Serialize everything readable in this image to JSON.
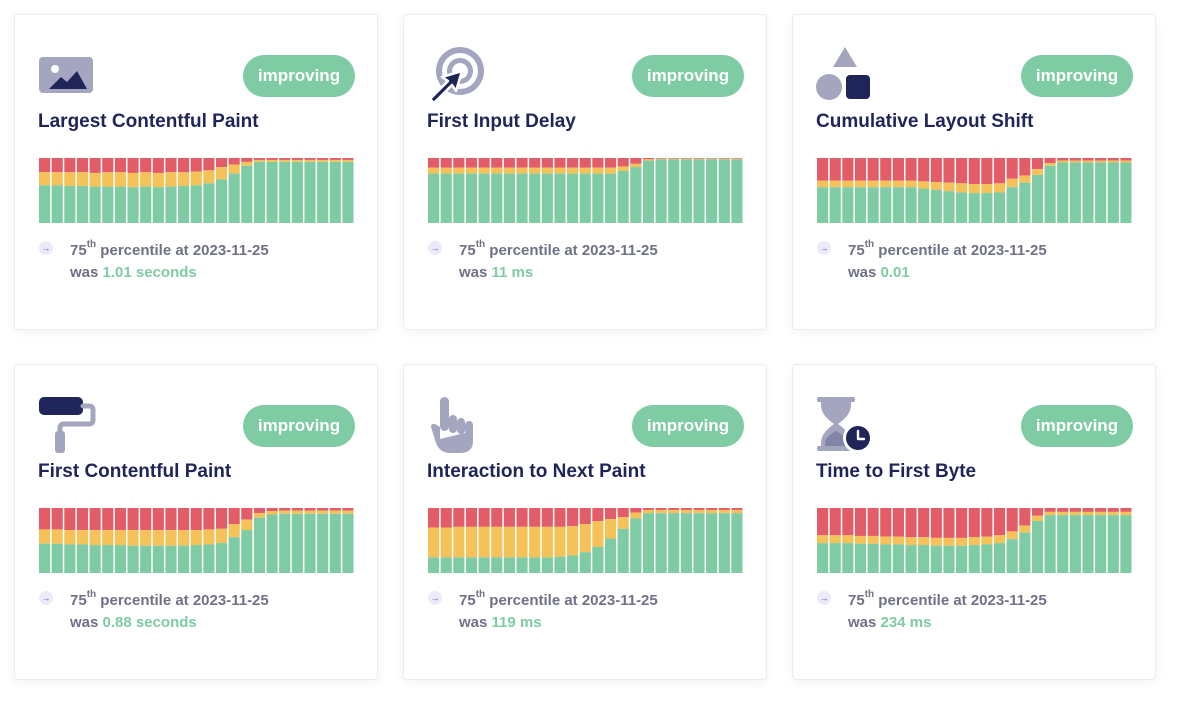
{
  "colors": {
    "good": "#7ecba4",
    "needs_improvement": "#f5c25a",
    "poor": "#e35d68",
    "navy": "#1f2459",
    "icon_gray": "#a4a6c0"
  },
  "cards": [
    {
      "icon": "image-icon",
      "badge": "improving",
      "title": "Largest Contentful Paint",
      "percentile_number": "75",
      "percentile_suffix": "th",
      "percentile_text": " percentile at 2023-11-25",
      "was_label": "was ",
      "value": "1.01 seconds",
      "bars": [
        {
          "good": 0.58,
          "ni": 0.2
        },
        {
          "good": 0.58,
          "ni": 0.2
        },
        {
          "good": 0.57,
          "ni": 0.21
        },
        {
          "good": 0.57,
          "ni": 0.21
        },
        {
          "good": 0.56,
          "ni": 0.21
        },
        {
          "good": 0.56,
          "ni": 0.22
        },
        {
          "good": 0.56,
          "ni": 0.22
        },
        {
          "good": 0.55,
          "ni": 0.22
        },
        {
          "good": 0.56,
          "ni": 0.22
        },
        {
          "good": 0.55,
          "ni": 0.22
        },
        {
          "good": 0.56,
          "ni": 0.22
        },
        {
          "good": 0.57,
          "ni": 0.21
        },
        {
          "good": 0.58,
          "ni": 0.21
        },
        {
          "good": 0.61,
          "ni": 0.2
        },
        {
          "good": 0.67,
          "ni": 0.19
        },
        {
          "good": 0.76,
          "ni": 0.14
        },
        {
          "good": 0.88,
          "ni": 0.06
        },
        {
          "good": 0.94,
          "ni": 0.03
        },
        {
          "good": 0.94,
          "ni": 0.03
        },
        {
          "good": 0.94,
          "ni": 0.03
        },
        {
          "good": 0.94,
          "ni": 0.03
        },
        {
          "good": 0.94,
          "ni": 0.03
        },
        {
          "good": 0.94,
          "ni": 0.03
        },
        {
          "good": 0.94,
          "ni": 0.03
        },
        {
          "good": 0.94,
          "ni": 0.03
        }
      ]
    },
    {
      "icon": "cursor-target-icon",
      "badge": "improving",
      "title": "First Input Delay",
      "percentile_number": "75",
      "percentile_suffix": "th",
      "percentile_text": " percentile at 2023-11-25",
      "was_label": "was ",
      "value": "11 ms",
      "bars": [
        {
          "good": 0.76,
          "ni": 0.09
        },
        {
          "good": 0.76,
          "ni": 0.09
        },
        {
          "good": 0.76,
          "ni": 0.09
        },
        {
          "good": 0.76,
          "ni": 0.09
        },
        {
          "good": 0.76,
          "ni": 0.09
        },
        {
          "good": 0.76,
          "ni": 0.09
        },
        {
          "good": 0.76,
          "ni": 0.09
        },
        {
          "good": 0.76,
          "ni": 0.09
        },
        {
          "good": 0.76,
          "ni": 0.09
        },
        {
          "good": 0.76,
          "ni": 0.09
        },
        {
          "good": 0.76,
          "ni": 0.09
        },
        {
          "good": 0.76,
          "ni": 0.09
        },
        {
          "good": 0.76,
          "ni": 0.09
        },
        {
          "good": 0.76,
          "ni": 0.09
        },
        {
          "good": 0.76,
          "ni": 0.09
        },
        {
          "good": 0.8,
          "ni": 0.07
        },
        {
          "good": 0.86,
          "ni": 0.05
        },
        {
          "good": 0.96,
          "ni": 0.02
        },
        {
          "good": 0.98,
          "ni": 0.01
        },
        {
          "good": 0.98,
          "ni": 0.01
        },
        {
          "good": 0.98,
          "ni": 0.01
        },
        {
          "good": 0.98,
          "ni": 0.01
        },
        {
          "good": 0.98,
          "ni": 0.01
        },
        {
          "good": 0.98,
          "ni": 0.01
        },
        {
          "good": 0.98,
          "ni": 0.01
        }
      ]
    },
    {
      "icon": "shapes-icon",
      "badge": "improving",
      "title": "Cumulative Layout Shift",
      "percentile_number": "75",
      "percentile_suffix": "th",
      "percentile_text": " percentile at 2023-11-25",
      "was_label": "was ",
      "value": "0.01",
      "bars": [
        {
          "good": 0.55,
          "ni": 0.1
        },
        {
          "good": 0.55,
          "ni": 0.1
        },
        {
          "good": 0.55,
          "ni": 0.1
        },
        {
          "good": 0.55,
          "ni": 0.1
        },
        {
          "good": 0.55,
          "ni": 0.1
        },
        {
          "good": 0.55,
          "ni": 0.1
        },
        {
          "good": 0.55,
          "ni": 0.1
        },
        {
          "good": 0.55,
          "ni": 0.1
        },
        {
          "good": 0.53,
          "ni": 0.11
        },
        {
          "good": 0.51,
          "ni": 0.12
        },
        {
          "good": 0.49,
          "ni": 0.13
        },
        {
          "good": 0.47,
          "ni": 0.14
        },
        {
          "good": 0.46,
          "ni": 0.14
        },
        {
          "good": 0.46,
          "ni": 0.14
        },
        {
          "good": 0.47,
          "ni": 0.14
        },
        {
          "good": 0.55,
          "ni": 0.13
        },
        {
          "good": 0.62,
          "ni": 0.11
        },
        {
          "good": 0.74,
          "ni": 0.09
        },
        {
          "good": 0.88,
          "ni": 0.04
        },
        {
          "good": 0.93,
          "ni": 0.03
        },
        {
          "good": 0.93,
          "ni": 0.03
        },
        {
          "good": 0.93,
          "ni": 0.03
        },
        {
          "good": 0.93,
          "ni": 0.03
        },
        {
          "good": 0.93,
          "ni": 0.03
        },
        {
          "good": 0.93,
          "ni": 0.03
        }
      ]
    },
    {
      "icon": "paint-roller-icon",
      "badge": "improving",
      "title": "First Contentful Paint",
      "percentile_number": "75",
      "percentile_suffix": "th",
      "percentile_text": " percentile at 2023-11-25",
      "was_label": "was ",
      "value": "0.88 seconds",
      "bars": [
        {
          "good": 0.45,
          "ni": 0.22
        },
        {
          "good": 0.45,
          "ni": 0.22
        },
        {
          "good": 0.44,
          "ni": 0.22
        },
        {
          "good": 0.44,
          "ni": 0.22
        },
        {
          "good": 0.43,
          "ni": 0.23
        },
        {
          "good": 0.43,
          "ni": 0.23
        },
        {
          "good": 0.43,
          "ni": 0.23
        },
        {
          "good": 0.42,
          "ni": 0.24
        },
        {
          "good": 0.42,
          "ni": 0.24
        },
        {
          "good": 0.42,
          "ni": 0.24
        },
        {
          "good": 0.42,
          "ni": 0.24
        },
        {
          "good": 0.42,
          "ni": 0.24
        },
        {
          "good": 0.43,
          "ni": 0.23
        },
        {
          "good": 0.44,
          "ni": 0.23
        },
        {
          "good": 0.46,
          "ni": 0.22
        },
        {
          "good": 0.55,
          "ni": 0.2
        },
        {
          "good": 0.66,
          "ni": 0.16
        },
        {
          "good": 0.85,
          "ni": 0.07
        },
        {
          "good": 0.9,
          "ni": 0.05
        },
        {
          "good": 0.91,
          "ni": 0.05
        },
        {
          "good": 0.91,
          "ni": 0.05
        },
        {
          "good": 0.91,
          "ni": 0.05
        },
        {
          "good": 0.91,
          "ni": 0.05
        },
        {
          "good": 0.91,
          "ni": 0.05
        },
        {
          "good": 0.91,
          "ni": 0.05
        }
      ]
    },
    {
      "icon": "pointing-hand-icon",
      "badge": "improving",
      "title": "Interaction to Next Paint",
      "percentile_number": "75",
      "percentile_suffix": "th",
      "percentile_text": " percentile at 2023-11-25",
      "was_label": "was ",
      "value": "119 ms",
      "bars": [
        {
          "good": 0.24,
          "ni": 0.46
        },
        {
          "good": 0.24,
          "ni": 0.46
        },
        {
          "good": 0.24,
          "ni": 0.47
        },
        {
          "good": 0.24,
          "ni": 0.47
        },
        {
          "good": 0.24,
          "ni": 0.47
        },
        {
          "good": 0.24,
          "ni": 0.47
        },
        {
          "good": 0.24,
          "ni": 0.47
        },
        {
          "good": 0.24,
          "ni": 0.47
        },
        {
          "good": 0.24,
          "ni": 0.47
        },
        {
          "good": 0.24,
          "ni": 0.47
        },
        {
          "good": 0.25,
          "ni": 0.46
        },
        {
          "good": 0.27,
          "ni": 0.45
        },
        {
          "good": 0.32,
          "ni": 0.43
        },
        {
          "good": 0.4,
          "ni": 0.4
        },
        {
          "good": 0.53,
          "ni": 0.3
        },
        {
          "good": 0.68,
          "ni": 0.18
        },
        {
          "good": 0.84,
          "ni": 0.09
        },
        {
          "good": 0.92,
          "ni": 0.05
        },
        {
          "good": 0.92,
          "ni": 0.05
        },
        {
          "good": 0.92,
          "ni": 0.05
        },
        {
          "good": 0.92,
          "ni": 0.05
        },
        {
          "good": 0.92,
          "ni": 0.05
        },
        {
          "good": 0.92,
          "ni": 0.05
        },
        {
          "good": 0.92,
          "ni": 0.05
        },
        {
          "good": 0.92,
          "ni": 0.05
        }
      ]
    },
    {
      "icon": "hourglass-clock-icon",
      "badge": "improving",
      "title": "Time to First Byte",
      "percentile_number": "75",
      "percentile_suffix": "th",
      "percentile_text": " percentile at 2023-11-25",
      "was_label": "was ",
      "value": "234 ms",
      "bars": [
        {
          "good": 0.46,
          "ni": 0.12
        },
        {
          "good": 0.46,
          "ni": 0.12
        },
        {
          "good": 0.46,
          "ni": 0.12
        },
        {
          "good": 0.45,
          "ni": 0.12
        },
        {
          "good": 0.45,
          "ni": 0.12
        },
        {
          "good": 0.44,
          "ni": 0.12
        },
        {
          "good": 0.44,
          "ni": 0.12
        },
        {
          "good": 0.43,
          "ni": 0.12
        },
        {
          "good": 0.43,
          "ni": 0.12
        },
        {
          "good": 0.42,
          "ni": 0.12
        },
        {
          "good": 0.42,
          "ni": 0.12
        },
        {
          "good": 0.42,
          "ni": 0.12
        },
        {
          "good": 0.43,
          "ni": 0.12
        },
        {
          "good": 0.44,
          "ni": 0.12
        },
        {
          "good": 0.46,
          "ni": 0.12
        },
        {
          "good": 0.52,
          "ni": 0.12
        },
        {
          "good": 0.62,
          "ni": 0.11
        },
        {
          "good": 0.8,
          "ni": 0.08
        },
        {
          "good": 0.89,
          "ni": 0.05
        },
        {
          "good": 0.89,
          "ni": 0.05
        },
        {
          "good": 0.89,
          "ni": 0.05
        },
        {
          "good": 0.89,
          "ni": 0.05
        },
        {
          "good": 0.89,
          "ni": 0.05
        },
        {
          "good": 0.89,
          "ni": 0.05
        },
        {
          "good": 0.89,
          "ni": 0.05
        }
      ]
    }
  ]
}
